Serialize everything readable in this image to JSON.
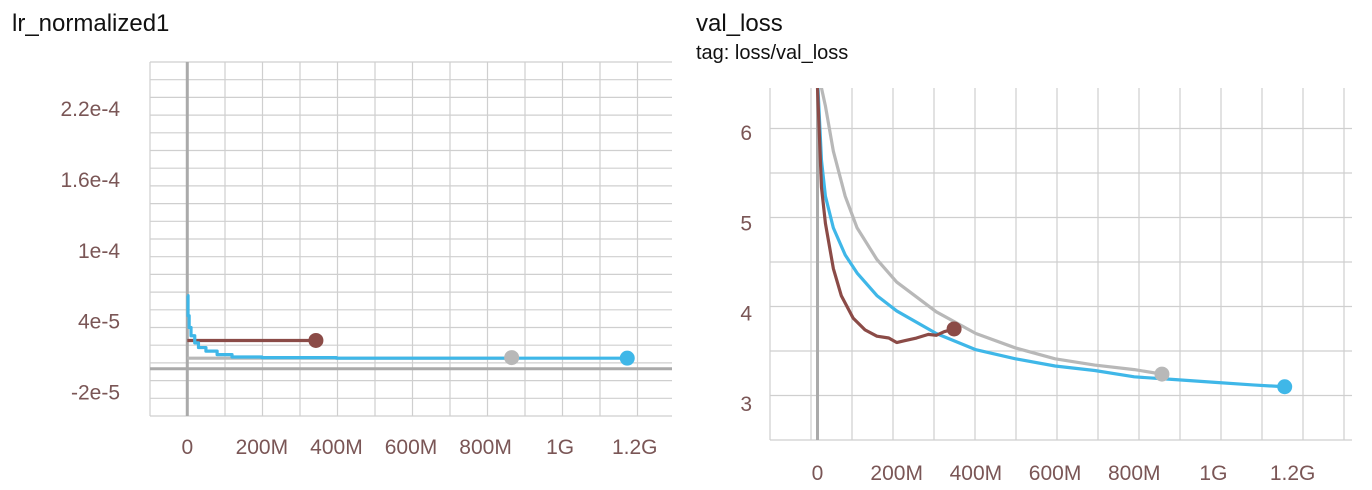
{
  "chart_data": [
    {
      "type": "line",
      "title": "lr_normalized1",
      "xlim": [
        -100000000,
        1300000000
      ],
      "ylim": [
        -4e-05,
        0.00026
      ],
      "x_ticks": [
        0,
        200000000,
        400000000,
        600000000,
        800000000,
        1000000000,
        1200000000
      ],
      "x_tick_labels": [
        "0",
        "200M",
        "400M",
        "600M",
        "800M",
        "1G",
        "1.2G"
      ],
      "y_ticks": [
        -2e-05,
        4e-05,
        0.0001,
        0.00016,
        0.00022
      ],
      "y_tick_labels": [
        "-2e-5",
        "4e-5",
        "1e-4",
        "1.6e-4",
        "2.2e-4"
      ],
      "grid": true,
      "colors": {
        "brown": "#8b4b47",
        "gray": "#b8b8b8",
        "blue": "#3fb7e8"
      },
      "series": [
        {
          "color": "brown",
          "x": [
            0,
            50000000,
            100000000,
            200000000,
            300000000,
            345000000
          ],
          "y": [
            2.4e-05,
            2.4e-05,
            2.4e-05,
            2.4e-05,
            2.4e-05,
            2.4e-05
          ]
        },
        {
          "color": "gray",
          "x": [
            0,
            100000000,
            300000000,
            600000000,
            870000000
          ],
          "y": [
            9e-06,
            9e-06,
            9e-06,
            9e-06,
            9.5e-06
          ]
        },
        {
          "color": "blue",
          "x": [
            0,
            2000000,
            5000000,
            10000000,
            20000000,
            30000000,
            50000000,
            80000000,
            120000000,
            200000000,
            400000000,
            600000000,
            870000000,
            1000000000,
            1180000000
          ],
          "y": [
            6.2e-05,
            4.5e-05,
            3.5e-05,
            2.8e-05,
            2.2e-05,
            1.8e-05,
            1.5e-05,
            1.2e-05,
            1e-05,
            9.5e-06,
            9e-06,
            9e-06,
            9e-06,
            9e-06,
            9e-06
          ]
        }
      ],
      "endpoints": [
        {
          "color": "brown",
          "x": 345000000,
          "y": 2.4e-05
        },
        {
          "color": "gray",
          "x": 870000000,
          "y": 9.5e-06
        },
        {
          "color": "blue",
          "x": 1180000000,
          "y": 9e-06
        }
      ]
    },
    {
      "type": "line",
      "title": "val_loss",
      "subtitle": "tag: loss/val_loss",
      "xlim": [
        -120000000,
        1350000000
      ],
      "ylim": [
        2.6,
        6.5
      ],
      "x_ticks": [
        0,
        200000000,
        400000000,
        600000000,
        800000000,
        1000000000,
        1200000000
      ],
      "x_tick_labels": [
        "0",
        "200M",
        "400M",
        "600M",
        "800M",
        "1G",
        "1.2G"
      ],
      "y_ticks": [
        3,
        4,
        5,
        6
      ],
      "y_tick_labels": [
        "3",
        "4",
        "5",
        "6"
      ],
      "grid": true,
      "colors": {
        "brown": "#8b4b47",
        "gray": "#b8b8b8",
        "blue": "#3fb7e8"
      },
      "series": [
        {
          "color": "gray",
          "x": [
            0,
            20000000,
            40000000,
            70000000,
            100000000,
            150000000,
            200000000,
            300000000,
            400000000,
            500000000,
            600000000,
            700000000,
            800000000,
            870000000
          ],
          "y": [
            6.7,
            6.3,
            5.8,
            5.3,
            4.95,
            4.6,
            4.35,
            4.02,
            3.78,
            3.62,
            3.5,
            3.43,
            3.38,
            3.33
          ]
        },
        {
          "color": "blue",
          "x": [
            0,
            10000000,
            20000000,
            40000000,
            70000000,
            100000000,
            150000000,
            200000000,
            300000000,
            400000000,
            500000000,
            600000000,
            700000000,
            800000000,
            900000000,
            1000000000,
            1100000000,
            1180000000
          ],
          "y": [
            6.6,
            5.7,
            5.3,
            4.95,
            4.65,
            4.45,
            4.2,
            4.03,
            3.78,
            3.6,
            3.5,
            3.42,
            3.37,
            3.3,
            3.27,
            3.24,
            3.21,
            3.19
          ]
        },
        {
          "color": "brown",
          "x": [
            0,
            10000000,
            20000000,
            40000000,
            60000000,
            90000000,
            120000000,
            150000000,
            180000000,
            200000000,
            220000000,
            250000000,
            280000000,
            300000000,
            320000000,
            345000000
          ],
          "y": [
            6.5,
            5.4,
            5.0,
            4.5,
            4.2,
            3.95,
            3.82,
            3.75,
            3.73,
            3.68,
            3.7,
            3.73,
            3.77,
            3.76,
            3.8,
            3.83
          ]
        }
      ],
      "endpoints": [
        {
          "color": "brown",
          "x": 345000000,
          "y": 3.83
        },
        {
          "color": "gray",
          "x": 870000000,
          "y": 3.33
        },
        {
          "color": "blue",
          "x": 1180000000,
          "y": 3.19
        }
      ]
    }
  ]
}
